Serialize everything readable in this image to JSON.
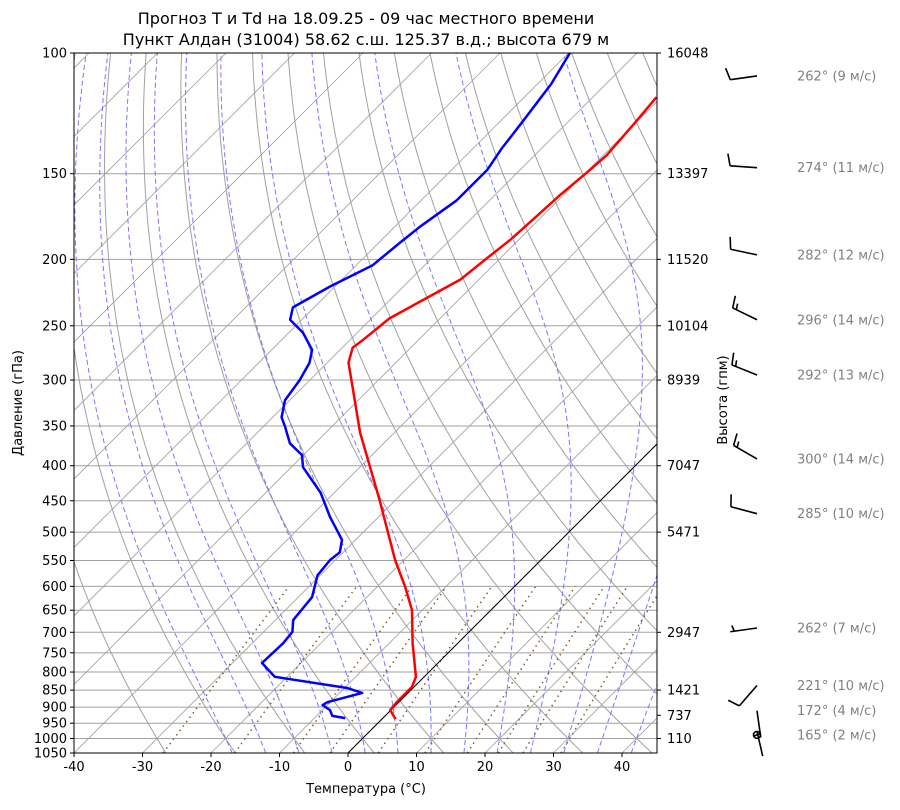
{
  "chart_data": {
    "type": "line",
    "title": [
      "Прогноз T и Td на 18.09.25 - 09 час местного времени",
      "Пункт Алдан (31004) 58.62 с.ш. 125.37 в.д.; высота 679 м"
    ],
    "xlabel": "Температура (°C)",
    "ylabel": "Давление (гПа)",
    "y2label": "Высота (гпм)",
    "xlim": [
      -40,
      45
    ],
    "ylim": [
      1050,
      100
    ],
    "yscale": "log",
    "skew_deg": 45,
    "x_ticks": [
      -40,
      -30,
      -20,
      -10,
      0,
      10,
      20,
      30,
      40
    ],
    "y_ticks": [
      1050,
      1000,
      950,
      900,
      850,
      800,
      750,
      700,
      650,
      600,
      550,
      500,
      450,
      400,
      350,
      300,
      250,
      200,
      150,
      100
    ],
    "height_ticks": [
      {
        "p": 100,
        "h": "16048"
      },
      {
        "p": 150,
        "h": "13397"
      },
      {
        "p": 200,
        "h": "11520"
      },
      {
        "p": 250,
        "h": "10104"
      },
      {
        "p": 300,
        "h": "8939"
      },
      {
        "p": 400,
        "h": "7047"
      },
      {
        "p": 500,
        "h": "5471"
      },
      {
        "p": 700,
        "h": "2947"
      },
      {
        "p": 850,
        "h": "1421"
      },
      {
        "p": 925,
        "h": "737"
      },
      {
        "p": 1000,
        "h": "110"
      }
    ],
    "grid": true,
    "colors": {
      "temperature": "#ff0000",
      "dewpoint": "#0000ff",
      "isotherm_zero": "#000000",
      "dry_adiabat": "#a0a0a0",
      "moist_adiabat": "#7777ff",
      "mixing_ratio": "#8b5a2b",
      "wind_label": "#808080"
    },
    "series": [
      {
        "key": "T",
        "p": [
          937,
          909,
          885,
          841,
          813,
          726,
          650,
          601,
          549,
          449,
          402,
          358,
          313,
          283,
          269,
          262,
          244,
          232,
          214,
          202,
          187,
          176,
          161,
          148,
          141,
          127,
          116
        ],
        "t": [
          2.0,
          -0.1,
          -0.3,
          -0.3,
          -1.2,
          -6.6,
          -11.5,
          -15.9,
          -21.3,
          -32.3,
          -38.5,
          -45.0,
          -51.8,
          -56.9,
          -58.5,
          -58.1,
          -57.4,
          -55.6,
          -52.7,
          -52.1,
          -51.2,
          -50.9,
          -50.5,
          -49.8,
          -49.5,
          -50.1,
          -50.7
        ]
      },
      {
        "key": "Td",
        "p": [
          934,
          927,
          909,
          894,
          885,
          858,
          844,
          813,
          776,
          726,
          699,
          672,
          622,
          578,
          549,
          535,
          513,
          475,
          438,
          402,
          386,
          371,
          351,
          340,
          321,
          300,
          283,
          271,
          256,
          245,
          235,
          219,
          204,
          189,
          179,
          164,
          148,
          138,
          127,
          111,
          100
        ],
        "t": [
          -5.5,
          -7.7,
          -8.9,
          -10.7,
          -10.4,
          -6.7,
          -9.6,
          -21.8,
          -25.7,
          -25.5,
          -25.8,
          -27.4,
          -28.0,
          -30.4,
          -30.8,
          -30.5,
          -32.0,
          -37.1,
          -42.0,
          -48.3,
          -50.2,
          -53.7,
          -56.8,
          -58.7,
          -60.7,
          -61.5,
          -62.6,
          -64.1,
          -67.9,
          -71.7,
          -73.1,
          -70.7,
          -67.6,
          -66.9,
          -66.3,
          -64.8,
          -64.8,
          -65.8,
          -66.6,
          -68.0,
          -69.8
        ]
      }
    ],
    "winds": [
      {
        "p": 108,
        "dir": 262,
        "speed": 9,
        "label": "262° (9 м/с)"
      },
      {
        "p": 147,
        "dir": 274,
        "speed": 11,
        "label": "274° (11 м/с)"
      },
      {
        "p": 197,
        "dir": 282,
        "speed": 12,
        "label": "282° (12 м/с)"
      },
      {
        "p": 245,
        "dir": 296,
        "speed": 14,
        "label": "296° (14 м/с)"
      },
      {
        "p": 295,
        "dir": 292,
        "speed": 13,
        "label": "292° (13 м/с)"
      },
      {
        "p": 391,
        "dir": 300,
        "speed": 14,
        "label": "300° (14 м/с)"
      },
      {
        "p": 470,
        "dir": 285,
        "speed": 10,
        "label": "285° (10 м/с)"
      },
      {
        "p": 690,
        "dir": 262,
        "speed": 7,
        "label": "262° (7 м/с)"
      },
      {
        "p": 837,
        "dir": 221,
        "speed": 10,
        "label": "221° (10 м/с)"
      },
      {
        "p": 911,
        "dir": 172,
        "speed": 4,
        "label": "172° (4 м/с)"
      },
      {
        "p": 988,
        "dir": 165,
        "speed": 2,
        "label": "165° (2 м/с)"
      }
    ]
  }
}
